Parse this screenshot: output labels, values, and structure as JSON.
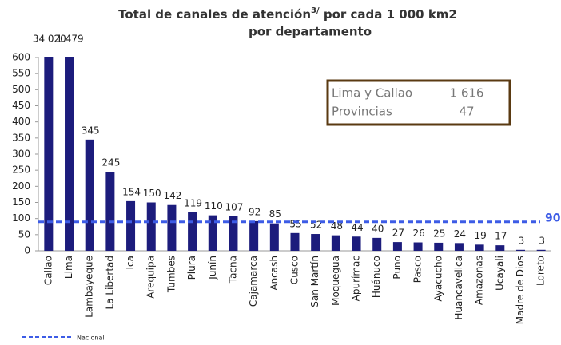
{
  "chart_data": {
    "type": "bar",
    "title": "Total de canales de atención",
    "title_superscript": "3/",
    "title_rest": " por cada 1 000 km2",
    "title_line2": "por departamento",
    "categories": [
      "Callao",
      "Lima",
      "Lambayeque",
      "La Libertad",
      "Ica",
      "Arequipa",
      "Tumbes",
      "Piura",
      "Junín",
      "Tacna",
      "Cajamarca",
      "Ancash",
      "Cusco",
      "San Martín",
      "Moquegua",
      "Apurímac",
      "Huánuco",
      "Puno",
      "Pasco",
      "Ayacucho",
      "Huancavelica",
      "Amazonas",
      "Ucayali",
      "Madre de Dios",
      "Loreto"
    ],
    "values": [
      34020,
      1479,
      345,
      245,
      154,
      150,
      142,
      119,
      110,
      107,
      92,
      85,
      55,
      52,
      48,
      44,
      40,
      27,
      26,
      25,
      24,
      19,
      17,
      3,
      3
    ],
    "value_labels": [
      "34 020",
      "1 479",
      "345",
      "245",
      "154",
      "150",
      "142",
      "119",
      "110",
      "107",
      "92",
      "85",
      "55",
      "52",
      "48",
      "44",
      "40",
      "27",
      "26",
      "25",
      "24",
      "19",
      "17",
      "3",
      "3"
    ],
    "color": "#1c1c7c",
    "ylim": [
      0,
      600
    ],
    "yticks": [
      0,
      50,
      100,
      150,
      200,
      250,
      300,
      350,
      400,
      450,
      500,
      550,
      600
    ],
    "reference_line": {
      "name": "Nacional",
      "value": 90,
      "color": "#3d5ce6"
    },
    "inset_table": [
      [
        "Lima y Callao",
        "1 616"
      ],
      [
        "Provincias",
        "47"
      ]
    ],
    "legend": "bottom-left"
  }
}
